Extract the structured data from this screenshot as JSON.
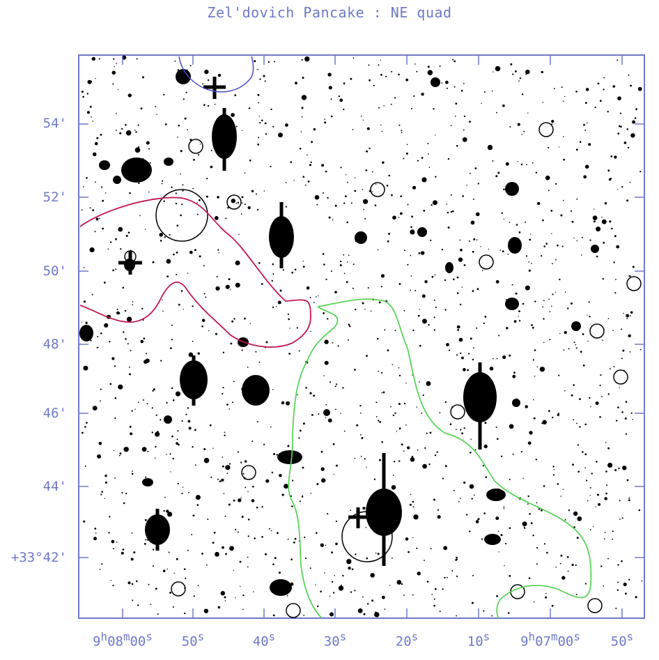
{
  "title": "Zel'dovich Pancake : NE quad",
  "y_axis": {
    "labels": [
      "54'",
      "52'",
      "50'",
      "48'",
      "46'",
      "44'",
      "+33°42'"
    ]
  },
  "x_axis": {
    "labels": [
      {
        "main": "9",
        "sup1": "h",
        "rest": "08",
        "sup2": "m",
        "rest2": "00",
        "sup3": "s"
      },
      {
        "main": "50",
        "sup1": "s"
      },
      {
        "main": "40",
        "sup1": "s"
      },
      {
        "main": "30",
        "sup1": "s"
      },
      {
        "main": "20",
        "sup1": "s"
      },
      {
        "main": "10",
        "sup1": "s"
      },
      {
        "main": "9",
        "sup1": "h",
        "rest": "07",
        "sup2": "m",
        "rest2": "00",
        "sup3": "s"
      },
      {
        "main": "50",
        "sup1": "s"
      }
    ]
  },
  "colors": {
    "frame": "#6f78c9",
    "red_contour": "#c0184a",
    "green_contour": "#5ad35a",
    "blue_contour": "#4a4ac8",
    "stars": "#000000"
  },
  "image_description_labels": []
}
